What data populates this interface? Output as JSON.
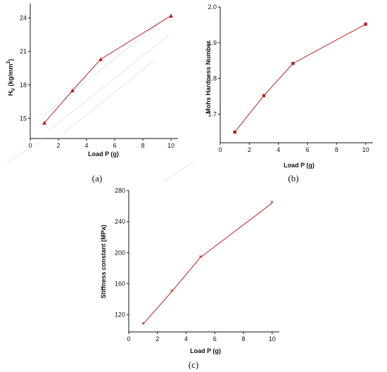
{
  "chart_data": [
    {
      "panel_label": "(a)",
      "type": "line",
      "xlabel": "Load P (g)",
      "ylabel_main": "H",
      "ylabel_sub": "V",
      "ylabel_unit": "(kg/mm",
      "ylabel_sup": "2",
      "ylabel_close": ")",
      "x": [
        1,
        3,
        5,
        10
      ],
      "y": [
        14.6,
        17.5,
        20.3,
        24.2
      ],
      "xlim": [
        0,
        10.5
      ],
      "ylim": [
        13.2,
        25.3
      ],
      "xticks": [
        "0",
        "2",
        "4",
        "6",
        "8",
        "10"
      ],
      "yticks": [
        "15",
        "18",
        "21",
        "24"
      ],
      "marker": "triangle",
      "color": "#b22222"
    },
    {
      "panel_label": "(b)",
      "type": "line",
      "xlabel": "Load P (g)",
      "ylabel": "Mohs Hardness Number",
      "x": [
        1,
        3,
        5,
        10
      ],
      "y": [
        1.65,
        1.752,
        1.842,
        1.952
      ],
      "xlim": [
        0,
        10.5
      ],
      "ylim": [
        1.62,
        2.0
      ],
      "xticks": [
        "0",
        "2",
        "4",
        "6",
        "8",
        "10"
      ],
      "yticks": [
        "1.7",
        "1.8",
        "1.9",
        "2.0"
      ],
      "marker": "square",
      "color": "#b22222"
    },
    {
      "panel_label": "(c)",
      "type": "line",
      "xlabel": "Load P (g)",
      "ylabel": "Stiffness constant (MPa)",
      "x": [
        1,
        3,
        5,
        10
      ],
      "y": [
        108,
        150,
        194,
        264
      ],
      "xlim": [
        0,
        10.5
      ],
      "ylim": [
        98,
        280
      ],
      "xticks": [
        "0",
        "2",
        "4",
        "6",
        "8",
        "10"
      ],
      "yticks": [
        "120",
        "160",
        "200",
        "240",
        "280"
      ],
      "marker": "star",
      "color": "#b22222"
    }
  ]
}
